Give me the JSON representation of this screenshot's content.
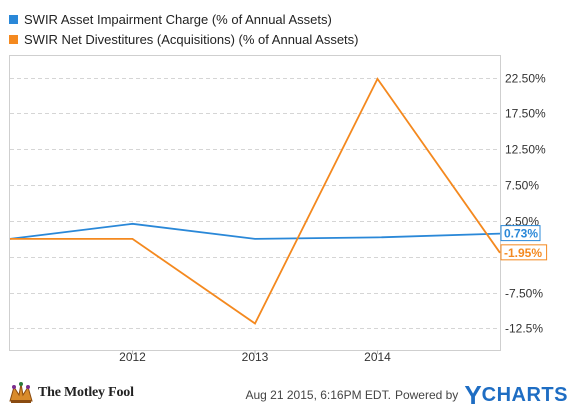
{
  "legend": [
    {
      "label": "SWIR Asset Impairment Charge (% of Annual Assets)",
      "color": "#2a88d8"
    },
    {
      "label": "SWIR Net Divestitures (Acquisitions) (% of Annual Assets)",
      "color": "#f4891f"
    }
  ],
  "chart_data": {
    "type": "line",
    "x": [
      2011.0,
      2012.0,
      2013.0,
      2014.0,
      2015.0
    ],
    "x_ticks": [
      2012,
      2013,
      2014
    ],
    "x_tick_labels": [
      "2012",
      "2013",
      "2014"
    ],
    "ylim": [
      -15.5,
      25.5
    ],
    "y_ticks": [
      22.5,
      17.5,
      12.5,
      7.5,
      2.5,
      -2.5,
      -7.5,
      -12.5
    ],
    "y_tick_labels": [
      "22.50%",
      "17.50%",
      "12.50%",
      "7.50%",
      "2.50%",
      "",
      "-7.50%",
      "-12.5%"
    ],
    "y_axis_position": "right",
    "grid": "horizontal dashed",
    "series": [
      {
        "name": "SWIR Asset Impairment Charge (% of Annual Assets)",
        "color": "#2a88d8",
        "x": [
          2011.0,
          2012.0,
          2013.0,
          2014.0,
          2015.0
        ],
        "y": [
          0.0,
          2.1,
          0.0,
          0.2,
          0.73
        ],
        "end_label": "0.73%"
      },
      {
        "name": "SWIR Net Divestitures (Acquisitions) (% of Annual Assets)",
        "color": "#f4891f",
        "x": [
          2011.0,
          2012.0,
          2013.0,
          2014.0,
          2015.0
        ],
        "y": [
          0.0,
          0.0,
          -11.8,
          22.3,
          -1.95
        ],
        "end_label": "-1.95%"
      }
    ]
  },
  "footer": {
    "brand": "The Motley Fool",
    "timestamp": "Aug 21 2015, 6:16PM EDT.",
    "powered_by": "Powered by",
    "ycharts_y": "Y",
    "ycharts_rest": "CHARTS"
  }
}
